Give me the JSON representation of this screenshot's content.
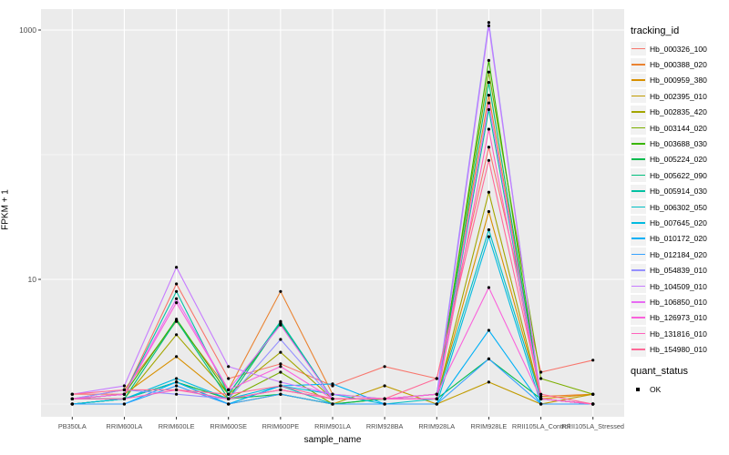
{
  "legend": {
    "tracking_title": "tracking_id",
    "quant_title": "quant_status",
    "quant_ok": "OK"
  },
  "chart_data": {
    "type": "line",
    "title": "",
    "xlabel": "sample_name",
    "ylabel": "FPKM + 1",
    "y_scale": "log10",
    "y_ticks": [
      10,
      1000
    ],
    "y_minor_gridlines": [
      1,
      100
    ],
    "ylim": [
      0.79,
      1470
    ],
    "grid": "on",
    "legend_position": "right",
    "panel_bg": "#EBEBEB",
    "gridline_color": "#FFFFFF",
    "tick_color": "#333333",
    "tick_label_color": "#4D4D4D",
    "point_color": "#000000",
    "quant_status_value": "OK",
    "categories": [
      "PB350LA",
      "RRIM600LA",
      "RRIM600LE",
      "RRIM600SE",
      "RRIM600PE",
      "RRIM901LA",
      "RRIM928BA",
      "RRIM928LA",
      "RRIM928LE",
      "RRII105LA_Control",
      "RRII105LA_Stressed"
    ],
    "series": [
      {
        "name": "Hb_000326_100",
        "color": "#F8766D",
        "values": [
          1.2,
          1.2,
          9.2,
          1.6,
          2.1,
          1.4,
          2.0,
          1.6,
          115,
          1.8,
          2.25
        ]
      },
      {
        "name": "Hb_000388_020",
        "color": "#EA8331",
        "values": [
          1.1,
          1.3,
          4.6,
          1.3,
          8.0,
          1.2,
          1.1,
          1.2,
          300,
          1.15,
          1.2
        ]
      },
      {
        "name": "Hb_000959_380",
        "color": "#D89000",
        "values": [
          1.1,
          1.2,
          2.4,
          1.1,
          1.3,
          1.1,
          1.1,
          1.1,
          35,
          1.1,
          1.2
        ]
      },
      {
        "name": "Hb_002395_010",
        "color": "#C09B00",
        "values": [
          1.0,
          1.1,
          1.5,
          1.0,
          1.2,
          1.0,
          1.4,
          1.0,
          1.5,
          1.0,
          1.2
        ]
      },
      {
        "name": "Hb_002835_420",
        "color": "#A3A500",
        "values": [
          1.0,
          1.1,
          3.6,
          1.2,
          2.6,
          1.1,
          1.1,
          1.1,
          50,
          1.1,
          1.0
        ]
      },
      {
        "name": "Hb_003144_020",
        "color": "#7CAE00",
        "values": [
          1.1,
          1.1,
          1.5,
          1.1,
          1.8,
          1.0,
          1.1,
          1.2,
          460,
          1.6,
          1.2
        ]
      },
      {
        "name": "Hb_003688_030",
        "color": "#39B600",
        "values": [
          1.1,
          1.2,
          4.8,
          1.2,
          4.4,
          1.1,
          1.1,
          1.1,
          570,
          1.1,
          1.0
        ]
      },
      {
        "name": "Hb_005224_020",
        "color": "#00BB4E",
        "values": [
          1.0,
          1.1,
          1.5,
          1.1,
          1.2,
          1.0,
          1.1,
          1.1,
          2.3,
          1.1,
          1.0
        ]
      },
      {
        "name": "Hb_005622_090",
        "color": "#00BF7D",
        "values": [
          1.1,
          1.1,
          4.7,
          1.1,
          4.5,
          1.1,
          1.1,
          1.1,
          380,
          1.1,
          1.0
        ]
      },
      {
        "name": "Hb_005914_030",
        "color": "#00C1A3",
        "values": [
          1.1,
          1.2,
          8.0,
          1.2,
          4.6,
          1.1,
          1.1,
          1.1,
          230,
          1.1,
          1.0
        ]
      },
      {
        "name": "Hb_006302_050",
        "color": "#00BFC4",
        "values": [
          1.0,
          1.1,
          1.5,
          1.0,
          1.4,
          1.0,
          1.0,
          1.1,
          25,
          1.1,
          1.0
        ]
      },
      {
        "name": "Hb_007645_020",
        "color": "#00BAE0",
        "values": [
          1.0,
          1.1,
          1.6,
          1.1,
          1.4,
          1.2,
          1.0,
          1.0,
          22,
          1.0,
          1.0
        ]
      },
      {
        "name": "Hb_010172_020",
        "color": "#00B0F6",
        "values": [
          1.0,
          1.0,
          1.5,
          1.0,
          1.4,
          1.45,
          1.0,
          1.0,
          3.9,
          1.0,
          1.0
        ]
      },
      {
        "name": "Hb_012184_020",
        "color": "#35A2FF",
        "values": [
          1.0,
          1.0,
          1.4,
          1.0,
          1.2,
          1.0,
          1.0,
          1.0,
          2.3,
          1.0,
          1.0
        ]
      },
      {
        "name": "Hb_054839_010",
        "color": "#9590FF",
        "values": [
          1.1,
          1.3,
          1.2,
          1.1,
          3.3,
          1.1,
          1.1,
          1.2,
          1150,
          1.1,
          1.0
        ]
      },
      {
        "name": "Hb_104509_010",
        "color": "#C77CFF",
        "values": [
          1.2,
          1.4,
          12.5,
          2.0,
          1.5,
          1.2,
          1.1,
          1.1,
          1080,
          1.1,
          1.0
        ]
      },
      {
        "name": "Hb_106850_010",
        "color": "#E76BF3",
        "values": [
          1.1,
          1.2,
          7.0,
          1.3,
          4.3,
          1.1,
          1.1,
          1.1,
          260,
          1.1,
          1.0
        ]
      },
      {
        "name": "Hb_126973_010",
        "color": "#FA62DB",
        "values": [
          1.1,
          1.2,
          6.5,
          1.3,
          2.0,
          1.1,
          1.1,
          1.2,
          8.6,
          1.1,
          1.0
        ]
      },
      {
        "name": "Hb_131816_010",
        "color": "#FF62BC",
        "values": [
          1.1,
          1.1,
          1.3,
          1.1,
          1.3,
          1.1,
          1.1,
          1.1,
          160,
          1.1,
          1.0
        ]
      },
      {
        "name": "Hb_154980_010",
        "color": "#FF6A98",
        "values": [
          1.2,
          1.3,
          1.3,
          1.2,
          1.4,
          1.1,
          1.1,
          1.6,
          90,
          1.2,
          1.0
        ]
      }
    ]
  }
}
